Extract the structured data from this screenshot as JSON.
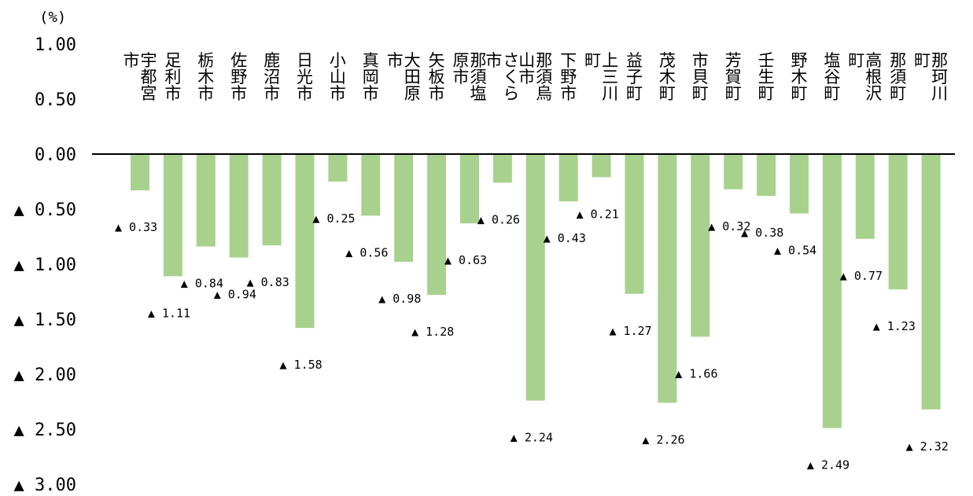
{
  "chart_data": {
    "type": "bar",
    "unit_label": "(%)",
    "title": "",
    "xlabel": "",
    "ylabel": "",
    "ylim": [
      -3.0,
      1.0
    ],
    "yticks": [
      1.0,
      0.5,
      0.0,
      -0.5,
      -1.0,
      -1.5,
      -2.0,
      -2.5,
      -3.0
    ],
    "ytick_labels": [
      "1.00",
      "0.50",
      "0.00",
      "▲ 0.50",
      "▲ 1.00",
      "▲ 1.50",
      "▲ 2.00",
      "▲ 2.50",
      "▲ 3.00"
    ],
    "grid": false,
    "legend": "none",
    "categories": [
      "宇都宮市",
      "足利市",
      "栃木市",
      "佐野市",
      "鹿沼市",
      "日光市",
      "小山市",
      "真岡市",
      "大田原市",
      "矢板市",
      "那須塩原市",
      "さくら市",
      "那須烏山市",
      "下野市",
      "上三川町",
      "益子町",
      "茂木町",
      "市貝町",
      "芳賀町",
      "壬生町",
      "野木町",
      "塩谷町",
      "高根沢町",
      "那須町",
      "那珂川町"
    ],
    "values": [
      -0.33,
      -1.11,
      -0.84,
      -0.94,
      -0.83,
      -1.58,
      -0.25,
      -0.56,
      -0.98,
      -1.28,
      -0.63,
      -0.26,
      -2.24,
      -0.43,
      -0.21,
      -1.27,
      -2.26,
      -1.66,
      -0.32,
      -0.38,
      -0.54,
      -2.49,
      -0.77,
      -1.23,
      -2.32
    ],
    "data_labels": [
      "▲ 0.33",
      "▲ 1.11",
      "▲ 0.84",
      "▲ 0.94",
      "▲ 0.83",
      "▲ 1.58",
      "▲ 0.25",
      "▲ 0.56",
      "▲ 0.98",
      "▲ 1.28",
      "▲ 0.63",
      "▲ 0.26",
      "▲ 2.24",
      "▲ 0.43",
      "▲ 0.21",
      "▲ 1.27",
      "▲ 2.26",
      "▲ 1.66",
      "▲ 0.32",
      "▲ 0.38",
      "▲ 0.54",
      "▲ 2.49",
      "▲ 0.77",
      "▲ 1.23",
      "▲ 2.32"
    ],
    "colors": {
      "bar": "#a9d18e",
      "axis": "#000000",
      "text": "#000000"
    }
  }
}
